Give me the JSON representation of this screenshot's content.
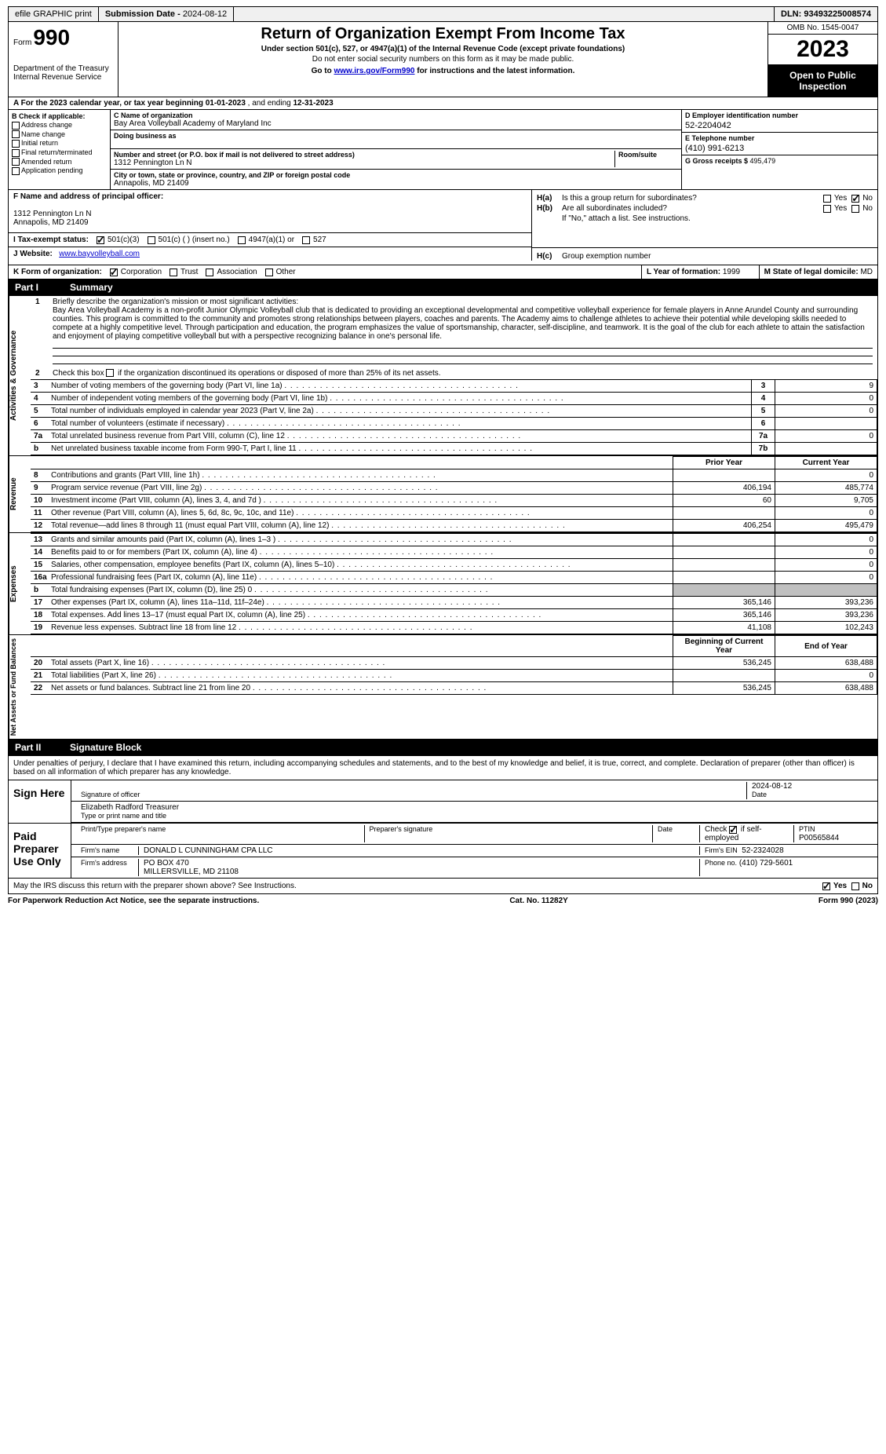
{
  "topbar": {
    "efile": "efile GRAPHIC print",
    "submission_label": "Submission Date - ",
    "submission_date": "2024-08-12",
    "dln_label": "DLN: ",
    "dln": "93493225008574"
  },
  "header": {
    "form_label": "Form",
    "form_number": "990",
    "dept1": "Department of the Treasury",
    "dept2": "Internal Revenue Service",
    "title": "Return of Organization Exempt From Income Tax",
    "subtitle": "Under section 501(c), 527, or 4947(a)(1) of the Internal Revenue Code (except private foundations)",
    "note1": "Do not enter social security numbers on this form as it may be made public.",
    "note2_pre": "Go to ",
    "note2_link": "www.irs.gov/Form990",
    "note2_post": " for instructions and the latest information.",
    "omb": "OMB No. 1545-0047",
    "year": "2023",
    "inspection": "Open to Public Inspection"
  },
  "line_a": {
    "text_pre": "A For the 2023 calendar year, or tax year beginning ",
    "begin": "01-01-2023",
    "text_mid": " , and ending ",
    "end": "12-31-2023"
  },
  "col_b": {
    "header": "B Check if applicable:",
    "opts": [
      "Address change",
      "Name change",
      "Initial return",
      "Final return/terminated",
      "Amended return",
      "Application pending"
    ]
  },
  "col_c": {
    "c_label": "C Name of organization",
    "org_name": "Bay Area Volleyball Academy of Maryland Inc",
    "dba_label": "Doing business as",
    "dba": "",
    "street_label": "Number and street (or P.O. box if mail is not delivered to street address)",
    "room_label": "Room/suite",
    "street": "1312 Pennington Ln N",
    "city_label": "City or town, state or province, country, and ZIP or foreign postal code",
    "city": "Annapolis, MD  21409"
  },
  "col_d": {
    "d_label": "D Employer identification number",
    "ein": "52-2204042",
    "e_label": "E Telephone number",
    "phone": "(410) 991-6213",
    "g_label": "G Gross receipts $ ",
    "gross": "495,479"
  },
  "row_f": {
    "label": "F Name and address of principal officer:",
    "addr1": "1312 Pennington Ln N",
    "addr2": "Annapolis, MD  21409"
  },
  "row_i": {
    "label": "I Tax-exempt status:",
    "o1": "501(c)(3)",
    "o2": "501(c) (  ) (insert no.)",
    "o3": "4947(a)(1) or",
    "o4": "527"
  },
  "row_j": {
    "label": "J Website:",
    "url": "www.bayvolleyball.com"
  },
  "row_h": {
    "ha_l": "H(a)",
    "ha_t": "Is this a group return for subordinates?",
    "hb_l": "H(b)",
    "hb_t": "Are all subordinates included?",
    "hb_note": "If \"No,\" attach a list. See instructions.",
    "hc_l": "H(c)",
    "hc_t": "Group exemption number",
    "yes": "Yes",
    "no": "No"
  },
  "row_k": {
    "label": "K Form of organization:",
    "opts": [
      "Corporation",
      "Trust",
      "Association",
      "Other"
    ],
    "l_label": "L Year of formation: ",
    "l_val": "1999",
    "m_label": "M State of legal domicile: ",
    "m_val": "MD"
  },
  "part1": {
    "hdr_num": "Part I",
    "hdr_txt": "Summary",
    "q1_label": "1",
    "q1_text": "Briefly describe the organization's mission or most significant activities:",
    "q1_body": "Bay Area Volleyball Academy is a non-profit Junior Olympic Volleyball club that is dedicated to providing an exceptional developmental and competitive volleyball experience for female players in Anne Arundel County and surrounding counties. This program is committed to the community and promotes strong relationships between players, coaches and parents. The Academy aims to challenge athletes to achieve their potential while developing skills needed to compete at a highly competitive level. Through participation and education, the program emphasizes the value of sportsmanship, character, self-discipline, and teamwork. It is the goal of the club for each athlete to attain the satisfaction and enjoyment of playing competitive volleyball but with a perspective recognizing balance in one's personal life.",
    "q2_n": "2",
    "q2_t": "Check this box       if the organization discontinued its operations or disposed of more than 25% of its net assets.",
    "rows_gov": [
      {
        "n": "3",
        "t": "Number of voting members of the governing body (Part VI, line 1a)",
        "ln": "3",
        "v": "9"
      },
      {
        "n": "4",
        "t": "Number of independent voting members of the governing body (Part VI, line 1b)",
        "ln": "4",
        "v": "0"
      },
      {
        "n": "5",
        "t": "Total number of individuals employed in calendar year 2023 (Part V, line 2a)",
        "ln": "5",
        "v": "0"
      },
      {
        "n": "6",
        "t": "Total number of volunteers (estimate if necessary)",
        "ln": "6",
        "v": ""
      },
      {
        "n": "7a",
        "t": "Total unrelated business revenue from Part VIII, column (C), line 12",
        "ln": "7a",
        "v": "0"
      },
      {
        "n": "b",
        "t": "Net unrelated business taxable income from Form 990-T, Part I, line 11",
        "ln": "7b",
        "v": ""
      }
    ],
    "prior_hdr": "Prior Year",
    "curr_hdr": "Current Year",
    "rows_rev": [
      {
        "n": "8",
        "t": "Contributions and grants (Part VIII, line 1h)",
        "p": "",
        "c": "0"
      },
      {
        "n": "9",
        "t": "Program service revenue (Part VIII, line 2g)",
        "p": "406,194",
        "c": "485,774"
      },
      {
        "n": "10",
        "t": "Investment income (Part VIII, column (A), lines 3, 4, and 7d )",
        "p": "60",
        "c": "9,705"
      },
      {
        "n": "11",
        "t": "Other revenue (Part VIII, column (A), lines 5, 6d, 8c, 9c, 10c, and 11e)",
        "p": "",
        "c": "0"
      },
      {
        "n": "12",
        "t": "Total revenue—add lines 8 through 11 (must equal Part VIII, column (A), line 12)",
        "p": "406,254",
        "c": "495,479"
      }
    ],
    "rows_exp": [
      {
        "n": "13",
        "t": "Grants and similar amounts paid (Part IX, column (A), lines 1–3 )",
        "p": "",
        "c": "0"
      },
      {
        "n": "14",
        "t": "Benefits paid to or for members (Part IX, column (A), line 4)",
        "p": "",
        "c": "0"
      },
      {
        "n": "15",
        "t": "Salaries, other compensation, employee benefits (Part IX, column (A), lines 5–10)",
        "p": "",
        "c": "0"
      },
      {
        "n": "16a",
        "t": "Professional fundraising fees (Part IX, column (A), line 11e)",
        "p": "",
        "c": "0"
      },
      {
        "n": "b",
        "t": "Total fundraising expenses (Part IX, column (D), line 25) 0",
        "p": "grey",
        "c": "grey"
      },
      {
        "n": "17",
        "t": "Other expenses (Part IX, column (A), lines 11a–11d, 11f–24e)",
        "p": "365,146",
        "c": "393,236"
      },
      {
        "n": "18",
        "t": "Total expenses. Add lines 13–17 (must equal Part IX, column (A), line 25)",
        "p": "365,146",
        "c": "393,236"
      },
      {
        "n": "19",
        "t": "Revenue less expenses. Subtract line 18 from line 12",
        "p": "41,108",
        "c": "102,243"
      }
    ],
    "begin_hdr": "Beginning of Current Year",
    "end_hdr": "End of Year",
    "rows_net": [
      {
        "n": "20",
        "t": "Total assets (Part X, line 16)",
        "p": "536,245",
        "c": "638,488"
      },
      {
        "n": "21",
        "t": "Total liabilities (Part X, line 26)",
        "p": "",
        "c": "0"
      },
      {
        "n": "22",
        "t": "Net assets or fund balances. Subtract line 21 from line 20",
        "p": "536,245",
        "c": "638,488"
      }
    ],
    "tab_gov": "Activities & Governance",
    "tab_rev": "Revenue",
    "tab_exp": "Expenses",
    "tab_net": "Net Assets or Fund Balances"
  },
  "part2": {
    "hdr_num": "Part II",
    "hdr_txt": "Signature Block",
    "declaration": "Under penalties of perjury, I declare that I have examined this return, including accompanying schedules and statements, and to the best of my knowledge and belief, it is true, correct, and complete. Declaration of preparer (other than officer) is based on all information of which preparer has any knowledge.",
    "sign_here": "Sign Here",
    "sig_officer_lbl": "Signature of officer",
    "sig_date": "2024-08-12",
    "sig_date_lbl": "Date",
    "officer_name": "Elizabeth Radford  Treasurer",
    "officer_type_lbl": "Type or print name and title",
    "paid_prep": "Paid Preparer Use Only",
    "prep_name_lbl": "Print/Type preparer's name",
    "prep_sig_lbl": "Preparer's signature",
    "prep_date_lbl": "Date",
    "self_emp": "Check       if self-employed",
    "ptin_lbl": "PTIN",
    "ptin": "P00565844",
    "firm_name_lbl": "Firm's name",
    "firm_name": "DONALD L CUNNINGHAM CPA LLC",
    "firm_ein_lbl": "Firm's EIN",
    "firm_ein": "52-2324028",
    "firm_addr_lbl": "Firm's address",
    "firm_addr1": "PO BOX 470",
    "firm_addr2": "MILLERSVILLE, MD  21108",
    "firm_phone_lbl": "Phone no.",
    "firm_phone": "(410) 729-5601",
    "discuss": "May the IRS discuss this return with the preparer shown above? See Instructions.",
    "yes": "Yes",
    "no": "No"
  },
  "footer": {
    "left": "For Paperwork Reduction Act Notice, see the separate instructions.",
    "mid": "Cat. No. 11282Y",
    "right": "Form 990 (2023)"
  }
}
